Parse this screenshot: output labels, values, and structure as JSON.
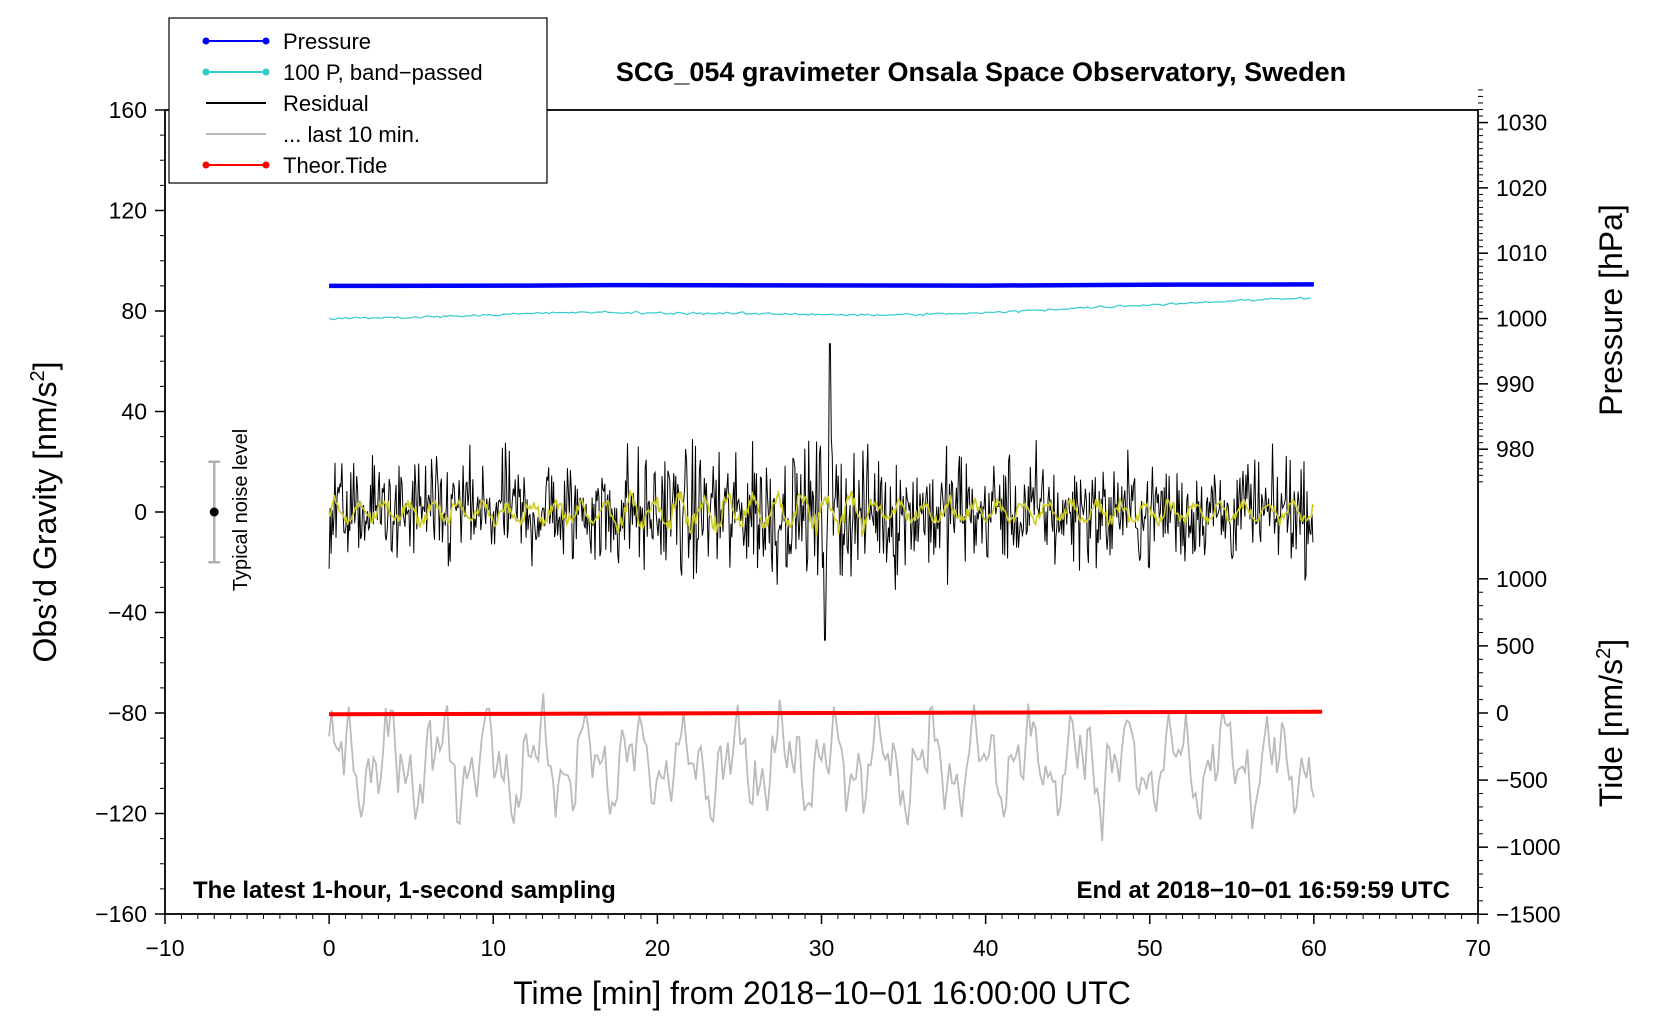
{
  "chart_data": {
    "type": "line",
    "title": "SCG_054 gravimeter Onsala Space Observatory, Sweden",
    "xlabel": "Time [min] from 2018−10−01 16:00:00 UTC",
    "ylabel_left": "Obs’d Gravity [nm/s²]",
    "ylabel_left_main": "Obs’d Gravity [nm/s",
    "ylabel_right_pressure": "Pressure [hPa]",
    "ylabel_right_tide": "Tide [nm/s²]",
    "ylabel_right_tide_main": "Tide [nm/s",
    "superscript": "2",
    "xlim": [
      -10,
      70
    ],
    "ylim_left": [
      -160,
      160
    ],
    "x_ticks": [
      "−10",
      "0",
      "10",
      "20",
      "30",
      "40",
      "50",
      "60",
      "70"
    ],
    "y_ticks_left": [
      "160",
      "120",
      "80",
      "40",
      "0",
      "−40",
      "−80",
      "−120",
      "−160"
    ],
    "pressure_ticks": [
      "1030",
      "1020",
      "1010",
      "1000",
      "990",
      "980"
    ],
    "tide_ticks": [
      "1000",
      "500",
      "0",
      "−500",
      "−1000",
      "−1500"
    ],
    "note_left": "The latest 1-hour, 1-second sampling",
    "note_right": "End at 2018−10−01 16:59:59 UTC",
    "noise_label": "Typical noise level",
    "noise_bar": {
      "x": -7,
      "center": 0,
      "half_range": 20
    },
    "legend": [
      {
        "label": "Pressure",
        "color": "#0000ff",
        "marker": true
      },
      {
        "label": "100 P, band−passed",
        "color": "#33cccc",
        "marker": true
      },
      {
        "label": "Residual",
        "color": "#000000",
        "marker": false
      },
      {
        "label": "... last 10 min.",
        "color": "#bbbbbb",
        "marker": false
      },
      {
        "label": "Theor.Tide",
        "color": "#ff0000",
        "marker": true
      }
    ],
    "series": [
      {
        "name": "Pressure",
        "color": "#0000ff",
        "display_offset": 90,
        "x": [
          0,
          12,
          17,
          27,
          40,
          51.5,
          60
        ],
        "y": [
          0,
          0.1,
          0.3,
          0.2,
          0.1,
          0.5,
          0.6
        ]
      },
      {
        "name": "100 P, band-passed",
        "color": "#33cccc",
        "x": [
          0,
          5,
          10,
          15,
          20,
          25,
          30,
          33,
          37,
          40,
          45,
          50,
          55,
          60
        ],
        "y": [
          77,
          77.5,
          78.5,
          79.5,
          79.2,
          79,
          78.7,
          78.3,
          78.8,
          79.2,
          81,
          82.5,
          84,
          85.5
        ]
      },
      {
        "name": "Residual",
        "color": "#000000",
        "x_range": [
          0,
          60
        ],
        "amplitude": "±25 typical, peaks to 67 and −51",
        "peak_max": 67,
        "peak_min": -51
      },
      {
        "name": "Residual smoothed",
        "color": "#cccc22",
        "x_range": [
          0,
          60
        ],
        "amplitude": "±5"
      },
      {
        "name": "... last 10 min.",
        "color": "#bbbbbb",
        "display_offset": -100,
        "x_range": [
          0,
          60
        ],
        "amplitude": "±25"
      },
      {
        "name": "Theor.Tide",
        "color": "#ff0000",
        "x": [
          0,
          60.5
        ],
        "y": [
          -80.5,
          -79.5
        ]
      }
    ]
  }
}
